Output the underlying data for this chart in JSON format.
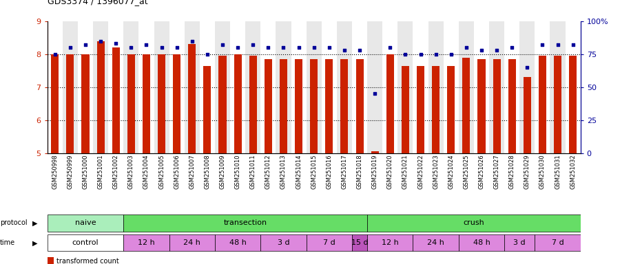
{
  "title": "GDS3374 / 1396077_at",
  "samples": [
    "GSM250998",
    "GSM250999",
    "GSM251000",
    "GSM251001",
    "GSM251002",
    "GSM251003",
    "GSM251004",
    "GSM251005",
    "GSM251006",
    "GSM251007",
    "GSM251008",
    "GSM251009",
    "GSM251010",
    "GSM251011",
    "GSM251012",
    "GSM251013",
    "GSM251014",
    "GSM251015",
    "GSM251016",
    "GSM251017",
    "GSM251018",
    "GSM251019",
    "GSM251020",
    "GSM251021",
    "GSM251022",
    "GSM251023",
    "GSM251024",
    "GSM251025",
    "GSM251026",
    "GSM251027",
    "GSM251028",
    "GSM251029",
    "GSM251030",
    "GSM251031",
    "GSM251032"
  ],
  "bar_values": [
    8.0,
    8.0,
    8.0,
    8.4,
    8.2,
    8.0,
    8.0,
    8.0,
    8.0,
    8.3,
    7.65,
    7.95,
    8.0,
    7.95,
    7.85,
    7.85,
    7.85,
    7.85,
    7.85,
    7.85,
    7.85,
    5.05,
    8.0,
    7.65,
    7.65,
    7.65,
    7.65,
    7.9,
    7.85,
    7.85,
    7.85,
    7.3,
    7.95,
    7.95,
    7.95
  ],
  "blue_values": [
    75,
    80,
    82,
    85,
    83,
    80,
    82,
    80,
    80,
    85,
    75,
    82,
    80,
    82,
    80,
    80,
    80,
    80,
    80,
    78,
    78,
    45,
    80,
    75,
    75,
    75,
    75,
    80,
    78,
    78,
    80,
    65,
    82,
    82,
    82
  ],
  "bar_color": "#cc2200",
  "dot_color": "#000099",
  "bg_color": "#e8e8e8",
  "naive_color": "#aaeebb",
  "transection_color": "#66dd66",
  "crush_color": "#66dd66",
  "control_color": "#ffffff",
  "time_color": "#dd88dd",
  "time_dark_color": "#bb55bb",
  "protocol_groups": [
    {
      "label": "naive",
      "start": 0,
      "end": 5,
      "color": "#aaeebb"
    },
    {
      "label": "transection",
      "start": 5,
      "end": 21,
      "color": "#66dd66"
    },
    {
      "label": "crush",
      "start": 21,
      "end": 35,
      "color": "#66dd66"
    }
  ],
  "time_groups": [
    {
      "label": "control",
      "start": 0,
      "end": 5,
      "color": "#ffffff"
    },
    {
      "label": "12 h",
      "start": 5,
      "end": 8,
      "color": "#dd88dd"
    },
    {
      "label": "24 h",
      "start": 8,
      "end": 11,
      "color": "#dd88dd"
    },
    {
      "label": "48 h",
      "start": 11,
      "end": 14,
      "color": "#dd88dd"
    },
    {
      "label": "3 d",
      "start": 14,
      "end": 17,
      "color": "#dd88dd"
    },
    {
      "label": "7 d",
      "start": 17,
      "end": 20,
      "color": "#dd88dd"
    },
    {
      "label": "15 d",
      "start": 20,
      "end": 21,
      "color": "#bb55bb"
    },
    {
      "label": "12 h",
      "start": 21,
      "end": 24,
      "color": "#dd88dd"
    },
    {
      "label": "24 h",
      "start": 24,
      "end": 27,
      "color": "#dd88dd"
    },
    {
      "label": "48 h",
      "start": 27,
      "end": 30,
      "color": "#dd88dd"
    },
    {
      "label": "3 d",
      "start": 30,
      "end": 32,
      "color": "#dd88dd"
    },
    {
      "label": "7 d",
      "start": 32,
      "end": 35,
      "color": "#dd88dd"
    }
  ]
}
